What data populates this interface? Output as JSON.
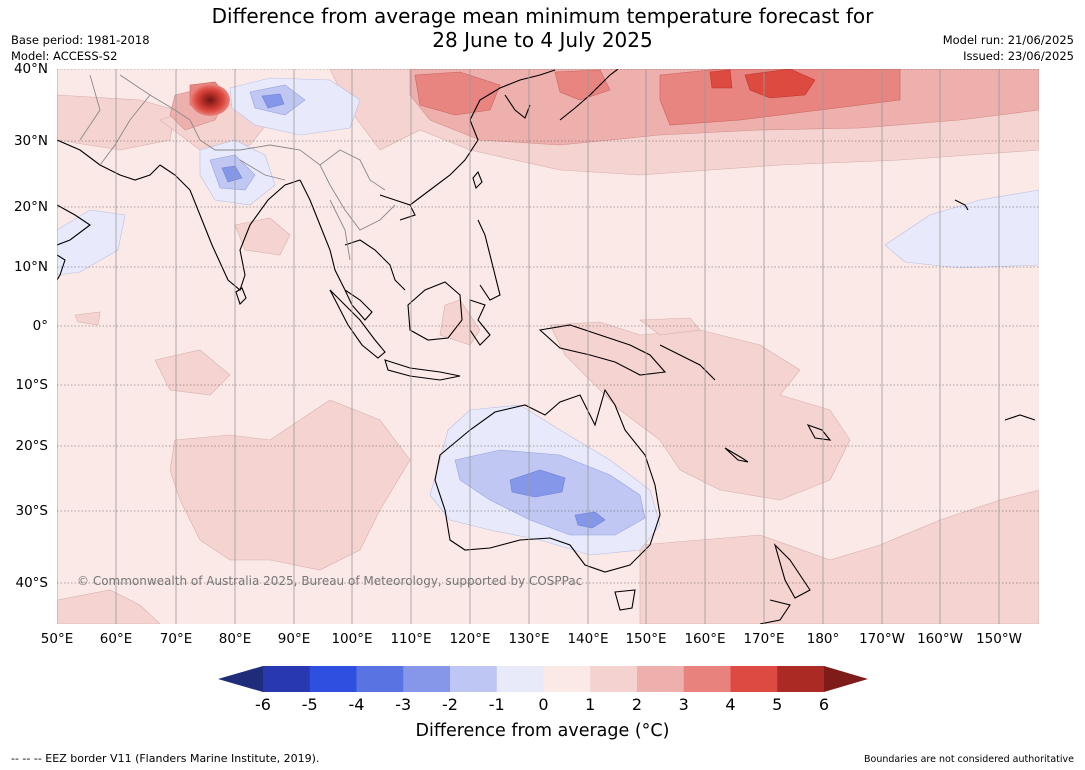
{
  "header": {
    "title_line1": "Difference from average mean minimum temperature forecast for",
    "title_line2": "28 June to 4 July 2025",
    "base_period": "Base period: 1981-2018",
    "model": "Model: ACCESS-S2",
    "model_run": "Model run: 21/06/2025",
    "issued": "Issued: 23/06/2025"
  },
  "map": {
    "region": "Asia-Pacific / Australia",
    "copyright": "© Commonwealth of Australia 2025, Bureau of Meteorology, supported by COSPPac",
    "lat_labels": [
      "40°N",
      "30°N",
      "20°N",
      "10°N",
      "0°",
      "10°S",
      "20°S",
      "30°S",
      "40°S"
    ],
    "lon_labels": [
      "50°E",
      "60°E",
      "70°E",
      "80°E",
      "90°E",
      "100°E",
      "110°E",
      "120°E",
      "130°E",
      "140°E",
      "150°E",
      "160°E",
      "170°E",
      "180°",
      "170°W",
      "160°W",
      "150°W"
    ],
    "colors": {
      "ocean_land_base": "#fbe9e8",
      "anom_1_2": "#f5d3d1",
      "anom_2_3": "#eeb0ad",
      "anom_3_4": "#e88580",
      "anom_4_5": "#dd4a40",
      "anom_5_6": "#ad2b25",
      "anom_neg_0_1": "#e8eafb",
      "anom_neg_1_2": "#c0c7f2",
      "anom_neg_2_3": "#8597e8",
      "anom_neg_3_4": "#5c73e0",
      "coast": "#000000",
      "border": "#888888",
      "grid": "#444444"
    }
  },
  "colorbar": {
    "ticks": [
      "-6",
      "-5",
      "-4",
      "-3",
      "-2",
      "-1",
      "0",
      "1",
      "2",
      "3",
      "4",
      "5",
      "6"
    ],
    "colors": [
      "#1f2c7a",
      "#2838b0",
      "#2f4fe0",
      "#5a73e2",
      "#8697ea",
      "#bec6f3",
      "#e8eafa",
      "#fbe9e8",
      "#f4d2d0",
      "#eeb0ad",
      "#e8827d",
      "#dc4a41",
      "#ab2a24",
      "#7d1c18"
    ],
    "title": "Difference from average (°C)"
  },
  "footer": {
    "eez": "--  --  -- EEZ border V11 (Flanders Marine Institute, 2019).",
    "note": "Boundaries are not considered authoritative"
  }
}
